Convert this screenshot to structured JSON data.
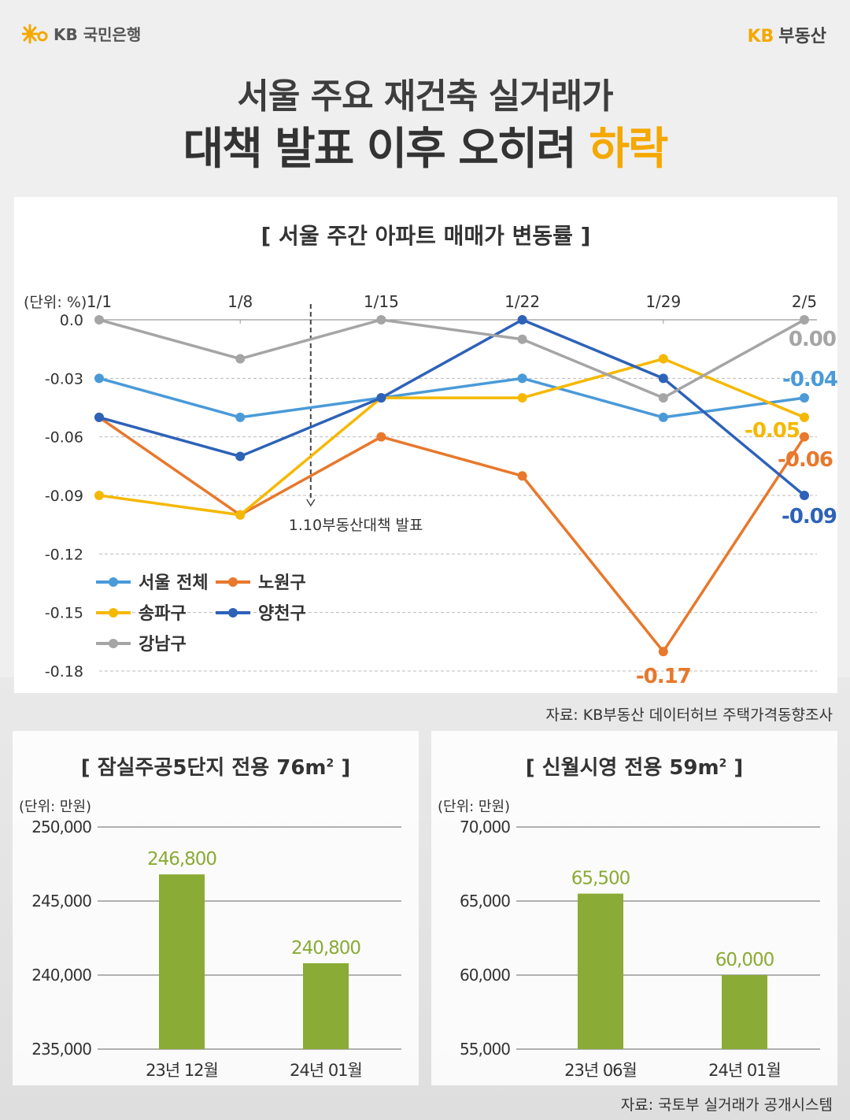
{
  "header": {
    "bank_name": "KB 국민은행",
    "brand_kb": "KB",
    "brand_name": "부동산"
  },
  "title": {
    "line1": "서울 주요 재건축 실거래가",
    "line2_main": "대책 발표 이후 오히려 ",
    "line2_highlight": "하락"
  },
  "colors": {
    "accent": "#f4a800",
    "bar": "#8aab35",
    "seoul": "#4a9ad8",
    "nowon": "#e8782c",
    "songpa": "#f5b800",
    "yangcheon": "#2d62b8",
    "gangnam": "#a5a5a5"
  },
  "line_chart_title": "[ 서울 주간 아파트 매매가 변동률 ]",
  "line_chart_source": "자료: KB부동산 데이터허브 주택가격동향조사",
  "bar_chart_source": "자료: 국토부 실거래가 공개시스템",
  "chart_data": [
    {
      "type": "line",
      "title": "[ 서울 주간 아파트 매매가 변동률 ]",
      "unit_label": "(단위: %)",
      "x": [
        "1/1",
        "1/8",
        "1/15",
        "1/22",
        "1/29",
        "2/5"
      ],
      "ylim": [
        -0.18,
        0.0
      ],
      "y_ticks": [
        "0.0",
        "-0.03",
        "-0.06",
        "-0.09",
        "-0.12",
        "-0.15",
        "-0.18"
      ],
      "grid": true,
      "legend_position": "bottom-left",
      "annotation": {
        "x": 1.5,
        "label": "1.10부동산대책 발표"
      },
      "series": [
        {
          "name": "서울 전체",
          "color": "#4a9ad8",
          "values": [
            -0.03,
            -0.05,
            -0.04,
            -0.03,
            -0.05,
            -0.04
          ],
          "end_label": "-0.04"
        },
        {
          "name": "노원구",
          "color": "#e8782c",
          "values": [
            -0.05,
            -0.1,
            -0.06,
            -0.08,
            -0.17,
            -0.06
          ],
          "end_label": "-0.06",
          "extra_label": "-0.17"
        },
        {
          "name": "송파구",
          "color": "#f5b800",
          "values": [
            -0.09,
            -0.1,
            -0.04,
            -0.04,
            -0.02,
            -0.05
          ],
          "end_label": "-0.05"
        },
        {
          "name": "양천구",
          "color": "#2d62b8",
          "values": [
            -0.05,
            -0.07,
            -0.04,
            0.0,
            -0.03,
            -0.09
          ],
          "end_label": "-0.09"
        },
        {
          "name": "강남구",
          "color": "#a5a5a5",
          "values": [
            0.0,
            -0.02,
            0.0,
            -0.01,
            -0.04,
            0.0
          ],
          "end_label": "0.00"
        }
      ]
    },
    {
      "type": "bar",
      "title": "[ 잠실주공5단지 전용 76m",
      "title_sup": "2",
      "title_end": " ]",
      "unit_label": "(단위: 만원)",
      "categories": [
        "23년 12월",
        "24년 01월"
      ],
      "values": [
        246800,
        240800
      ],
      "value_labels": [
        "246,800",
        "240,800"
      ],
      "ylim": [
        235000,
        250000
      ],
      "y_ticks": [
        "250,000",
        "245,000",
        "240,000",
        "235,000"
      ]
    },
    {
      "type": "bar",
      "title": "[ 신월시영 전용 59m",
      "title_sup": "2",
      "title_end": " ]",
      "unit_label": "(단위: 만원)",
      "categories": [
        "23년 06월",
        "24년 01월"
      ],
      "values": [
        65500,
        60000
      ],
      "value_labels": [
        "65,500",
        "60,000"
      ],
      "ylim": [
        55000,
        70000
      ],
      "y_ticks": [
        "70,000",
        "65,000",
        "60,000",
        "55,000"
      ]
    }
  ]
}
